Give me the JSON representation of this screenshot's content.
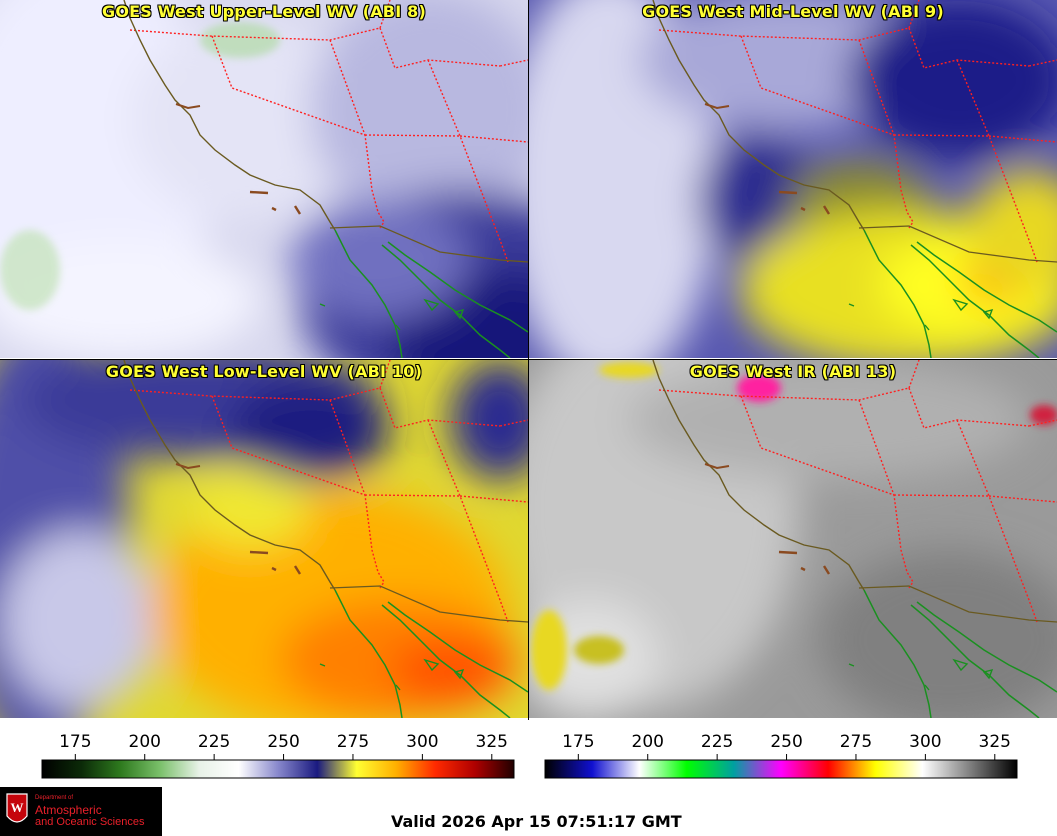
{
  "panels": {
    "upper": {
      "title": "GOES West Upper-Level WV (ABI 8)"
    },
    "mid": {
      "title": "GOES West Mid-Level WV (ABI 9)"
    },
    "low": {
      "title": "GOES West Low-Level WV (ABI 10)"
    },
    "ir": {
      "title": "GOES West IR (ABI 13)"
    }
  },
  "colorbars": {
    "wv": {
      "ticks": [
        "175",
        "200",
        "225",
        "250",
        "275",
        "300",
        "325"
      ],
      "range": [
        163,
        333
      ],
      "colors": [
        "#000000",
        "#0b2a08",
        "#2e7a1e",
        "#7ac06a",
        "#e8f2e8",
        "#ffffff",
        "#8888cc",
        "#1a1a80",
        "#ffff33",
        "#ffb000",
        "#ff2a00",
        "#b00000",
        "#200000"
      ]
    },
    "ir": {
      "ticks": [
        "175",
        "200",
        "225",
        "250",
        "275",
        "300",
        "325"
      ],
      "range": [
        163,
        333
      ],
      "colors": [
        "#000000",
        "#1010d0",
        "#ffffff",
        "#00ff00",
        "#00a0a0",
        "#ff00ff",
        "#ff0000",
        "#ffff00",
        "#ffffff",
        "#808080",
        "#000000"
      ]
    }
  },
  "logo": {
    "line1": "Department of",
    "line2": "Atmospheric",
    "line3": "and Oceanic Sciences"
  },
  "valid_text": "Valid 2026 Apr 15 07:51:17 GMT"
}
